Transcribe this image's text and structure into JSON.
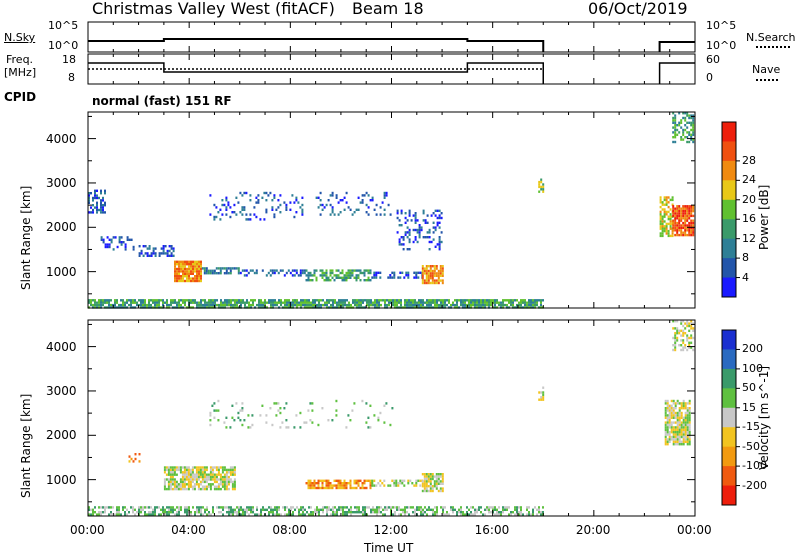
{
  "header": {
    "title": "Christmas Valley West (fitACF)",
    "beam": "Beam 18",
    "date": "06/Oct/2019"
  },
  "strip_nsky": {
    "label": "N.Sky",
    "left_ticks": [
      "10^5",
      "10^0"
    ],
    "right_ticks": [
      "10^5",
      "10^0"
    ],
    "right_label": "N.Search"
  },
  "strip_freq": {
    "label_top": "Freq.",
    "label_bottom": "[MHz]",
    "left_ticks": [
      "18",
      "8"
    ],
    "right_ticks": [
      "60",
      "0"
    ],
    "right_label": "Nave"
  },
  "cpid": {
    "label": "CPID",
    "value": "normal (fast) 151 RF"
  },
  "chart_data": [
    {
      "type": "heatmap",
      "name": "power-panel",
      "ylabel": "Slant Range [km]",
      "ylim": [
        180,
        4600
      ],
      "yticks": [
        "1000",
        "2000",
        "3000",
        "4000"
      ],
      "xlim": [
        0,
        24
      ],
      "colorbar": {
        "label": "Power [dB]",
        "ticks": [
          "4",
          "8",
          "12",
          "16",
          "20",
          "24",
          "28"
        ],
        "colors": [
          "#1a1aff",
          "#2255aa",
          "#2e7f96",
          "#3a9a6a",
          "#60c030",
          "#e8c818",
          "#f08a10",
          "#f05010",
          "#ee1f0c"
        ]
      },
      "echo_bands": [
        {
          "t0": 0.0,
          "t1": 18.0,
          "r0": 200,
          "r1": 380,
          "level": 3,
          "density": 0.8
        },
        {
          "t0": 3.4,
          "t1": 4.5,
          "r0": 800,
          "r1": 1250,
          "level": 6,
          "density": 0.9
        },
        {
          "t0": 2.0,
          "t1": 3.4,
          "r0": 1350,
          "r1": 1600,
          "level": 1,
          "density": 0.5
        },
        {
          "t0": 4.5,
          "t1": 6.0,
          "r0": 980,
          "r1": 1100,
          "level": 2,
          "density": 0.6
        },
        {
          "t0": 6.0,
          "t1": 8.6,
          "r0": 900,
          "r1": 1050,
          "level": 1,
          "density": 0.5
        },
        {
          "t0": 8.6,
          "t1": 11.2,
          "r0": 800,
          "r1": 1050,
          "level": 3,
          "density": 0.6
        },
        {
          "t0": 11.2,
          "t1": 13.2,
          "r0": 850,
          "r1": 1000,
          "level": 1,
          "density": 0.5
        },
        {
          "t0": 13.2,
          "t1": 14.0,
          "r0": 750,
          "r1": 1150,
          "level": 6,
          "density": 0.85
        },
        {
          "t0": 0.0,
          "t1": 0.7,
          "r0": 2350,
          "r1": 2850,
          "level": 1,
          "density": 0.4
        },
        {
          "t0": 0.5,
          "t1": 1.8,
          "r0": 1500,
          "r1": 1800,
          "level": 1,
          "density": 0.3
        },
        {
          "t0": 4.8,
          "t1": 8.5,
          "r0": 2200,
          "r1": 2800,
          "level": 1,
          "density": 0.15
        },
        {
          "t0": 9.0,
          "t1": 12.0,
          "r0": 2300,
          "r1": 2800,
          "level": 1,
          "density": 0.15
        },
        {
          "t0": 12.2,
          "t1": 14.0,
          "r0": 1500,
          "r1": 2400,
          "level": 1,
          "density": 0.25
        },
        {
          "t0": 17.8,
          "t1": 18.0,
          "r0": 2800,
          "r1": 3100,
          "level": 4,
          "density": 0.7
        },
        {
          "t0": 22.6,
          "t1": 23.1,
          "r0": 1800,
          "r1": 2700,
          "level": 5,
          "density": 0.75
        },
        {
          "t0": 23.1,
          "t1": 23.9,
          "r0": 1800,
          "r1": 2500,
          "level": 7,
          "density": 0.85
        },
        {
          "t0": 23.1,
          "t1": 23.9,
          "r0": 3900,
          "r1": 4600,
          "level": 3,
          "density": 0.5
        }
      ]
    },
    {
      "type": "heatmap",
      "name": "velocity-panel",
      "ylabel": "Slant Range [km]",
      "ylim": [
        180,
        4600
      ],
      "yticks": [
        "1000",
        "2000",
        "3000",
        "4000"
      ],
      "xlim": [
        0,
        24
      ],
      "xticks": [
        "00:00",
        "04:00",
        "08:00",
        "12:00",
        "16:00",
        "20:00",
        "00:00"
      ],
      "xlabel": "Time UT",
      "colorbar": {
        "label": "Velocity [m s^-1]",
        "ticks": [
          "200",
          "100",
          "50",
          "15",
          "-15",
          "-50",
          "-100",
          "-200"
        ],
        "colors": [
          "#1a2fd0",
          "#2a6ac0",
          "#3a9a6a",
          "#5fc040",
          "#c8c8c8",
          "#f2c420",
          "#f29a10",
          "#f05a10",
          "#ee1e0c"
        ]
      },
      "echo_bands": [
        {
          "t0": 0.0,
          "t1": 18.0,
          "r0": 200,
          "r1": 400,
          "level": 3,
          "density": 0.6
        },
        {
          "t0": 3.0,
          "t1": 5.8,
          "r0": 800,
          "r1": 1300,
          "level": 4,
          "density": 0.8
        },
        {
          "t0": 8.6,
          "t1": 11.2,
          "r0": 800,
          "r1": 1000,
          "level": 6,
          "density": 0.7
        },
        {
          "t0": 11.2,
          "t1": 13.2,
          "r0": 850,
          "r1": 1000,
          "level": 4,
          "density": 0.5
        },
        {
          "t0": 13.2,
          "t1": 14.0,
          "r0": 750,
          "r1": 1150,
          "level": 4,
          "density": 0.8
        },
        {
          "t0": 1.6,
          "t1": 2.0,
          "r0": 1400,
          "r1": 1600,
          "level": 6,
          "density": 0.4
        },
        {
          "t0": 4.8,
          "t1": 12.0,
          "r0": 2200,
          "r1": 2800,
          "level": 3,
          "density": 0.08
        },
        {
          "t0": 17.8,
          "t1": 18.0,
          "r0": 2800,
          "r1": 3100,
          "level": 4,
          "density": 0.6
        },
        {
          "t0": 22.8,
          "t1": 23.8,
          "r0": 1800,
          "r1": 2800,
          "level": 4,
          "density": 0.85
        },
        {
          "t0": 23.1,
          "t1": 23.9,
          "r0": 3900,
          "r1": 4600,
          "level": 4,
          "density": 0.5
        }
      ]
    }
  ]
}
